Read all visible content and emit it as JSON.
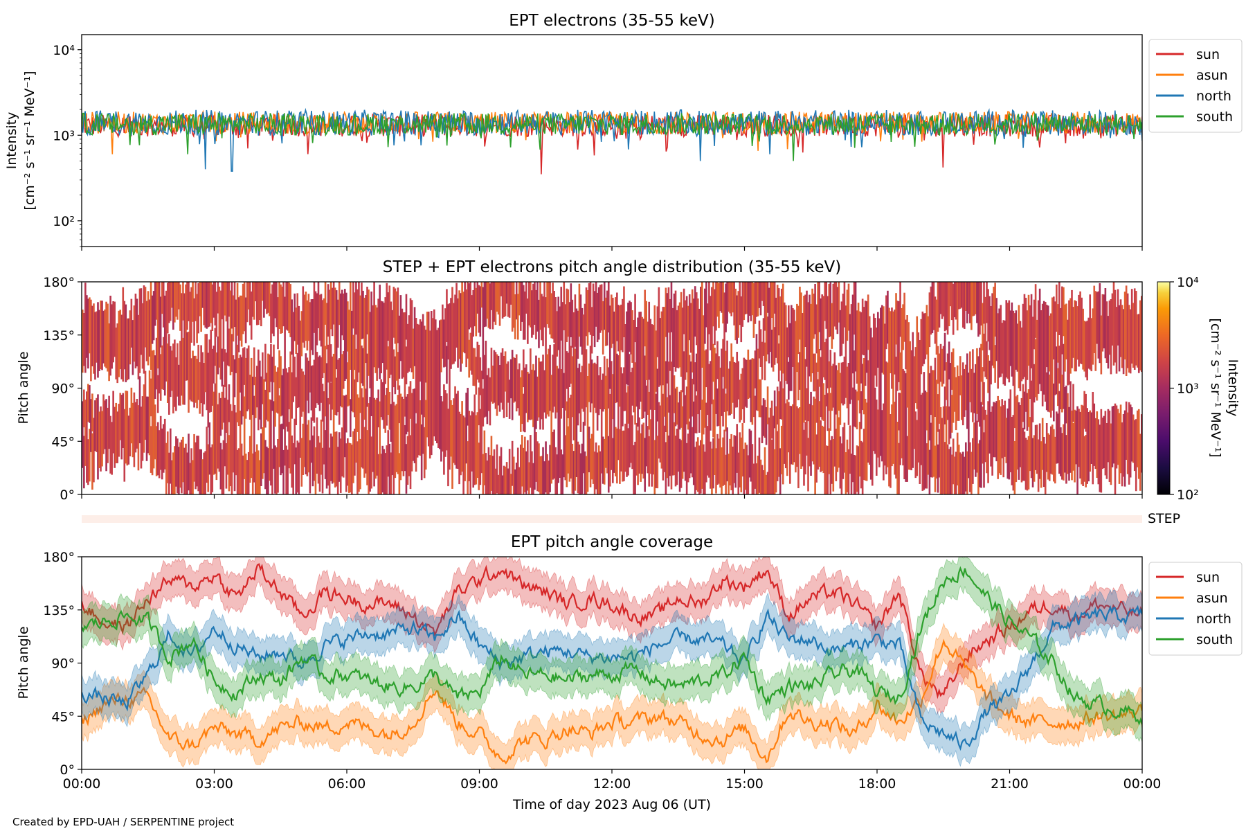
{
  "chart_data": [
    {
      "type": "line",
      "title": "EPT electrons (35-55 keV)",
      "ylabel_line1": "Intensity",
      "ylabel_line2": "[cm⁻² s⁻¹ sr⁻¹ MeV⁻¹]",
      "yscale": "log",
      "ylim": [
        50,
        15000
      ],
      "yticks": [
        100,
        1000,
        10000
      ],
      "ytick_labels": [
        "10²",
        "10³",
        "10⁴"
      ],
      "xlim": [
        0,
        24
      ],
      "legend_position": "outside-right-top",
      "series": [
        {
          "name": "sun",
          "color": "#d62728",
          "typical": 1300,
          "spread": 0.13,
          "dips": [
            [
              10.4,
              350
            ],
            [
              19.5,
              420
            ]
          ]
        },
        {
          "name": "asun",
          "color": "#ff7f0e",
          "typical": 1400,
          "spread": 0.13,
          "dips": [
            [
              0.7,
              600
            ]
          ]
        },
        {
          "name": "north",
          "color": "#1f77b4",
          "typical": 1400,
          "spread": 0.15,
          "dips": [
            [
              2.8,
              400
            ],
            [
              3.4,
              380
            ],
            [
              14.0,
              500
            ]
          ]
        },
        {
          "name": "south",
          "color": "#2ca02c",
          "typical": 1350,
          "spread": 0.13,
          "dips": [
            [
              2.4,
              600
            ],
            [
              16.1,
              500
            ]
          ]
        }
      ]
    },
    {
      "type": "heatmap",
      "title": "STEP + EPT electrons pitch angle distribution (35-55 keV)",
      "ylabel": "Pitch angle",
      "ylim": [
        0,
        180
      ],
      "yticks": [
        0,
        45,
        90,
        135,
        180
      ],
      "ytick_labels": [
        "0°",
        "45°",
        "90°",
        "135°",
        "180°"
      ],
      "xlim": [
        0,
        24
      ],
      "typical_intensity": 1300,
      "colorbar": {
        "label_line1": "Intensity",
        "label_line2": "[cm⁻² s⁻¹ sr⁻¹ MeV⁻¹]",
        "scale": "log",
        "range": [
          100,
          10000
        ],
        "ticks": [
          100,
          1000,
          10000
        ],
        "tick_labels": [
          "10²",
          "10³",
          "10⁴"
        ],
        "colormap": "inferno"
      },
      "step_label": "STEP"
    },
    {
      "type": "line",
      "title": "EPT pitch angle coverage",
      "ylabel": "Pitch angle",
      "xlabel": "Time of day 2023 Aug 06 (UT)",
      "ylim": [
        0,
        180
      ],
      "yticks": [
        0,
        45,
        90,
        135,
        180
      ],
      "ytick_labels": [
        "0°",
        "45°",
        "90°",
        "135°",
        "180°"
      ],
      "xlim": [
        0,
        24
      ],
      "xticks": [
        0,
        3,
        6,
        9,
        12,
        15,
        18,
        21,
        24
      ],
      "xtick_labels": [
        "00:00",
        "03:00",
        "06:00",
        "09:00",
        "12:00",
        "15:00",
        "18:00",
        "21:00",
        "00:00"
      ],
      "legend_position": "outside-right-top",
      "band_halfwidth": 15,
      "x": [
        0,
        0.5,
        1,
        1.5,
        2,
        2.5,
        3,
        3.5,
        4,
        4.5,
        5,
        5.5,
        6,
        6.5,
        7,
        7.5,
        8,
        8.5,
        9,
        9.5,
        10,
        10.5,
        11,
        11.5,
        12,
        12.5,
        13,
        13.5,
        14,
        14.5,
        15,
        15.5,
        16,
        16.5,
        17,
        17.5,
        18,
        18.5,
        19,
        19.5,
        20,
        20.5,
        21,
        21.5,
        22,
        22.5,
        23,
        23.5,
        24
      ],
      "series": [
        {
          "name": "sun",
          "color": "#d62728",
          "values": [
            140,
            125,
            120,
            145,
            160,
            155,
            165,
            145,
            170,
            150,
            130,
            150,
            145,
            140,
            140,
            130,
            115,
            150,
            160,
            170,
            155,
            150,
            140,
            145,
            140,
            130,
            130,
            145,
            140,
            160,
            155,
            170,
            130,
            145,
            150,
            140,
            120,
            150,
            80,
            60,
            95,
            110,
            120,
            135,
            140,
            130,
            140,
            135,
            130
          ]
        },
        {
          "name": "asun",
          "color": "#ff7f0e",
          "values": [
            40,
            55,
            60,
            60,
            25,
            20,
            35,
            30,
            25,
            35,
            40,
            35,
            40,
            35,
            30,
            40,
            70,
            40,
            30,
            10,
            25,
            25,
            35,
            30,
            40,
            40,
            45,
            40,
            30,
            25,
            35,
            10,
            50,
            40,
            40,
            30,
            55,
            40,
            60,
            110,
            85,
            60,
            45,
            40,
            40,
            40,
            45,
            45,
            50
          ]
        },
        {
          "name": "north",
          "color": "#1f77b4",
          "values": [
            65,
            60,
            55,
            80,
            115,
            95,
            120,
            105,
            95,
            100,
            90,
            105,
            110,
            115,
            115,
            120,
            110,
            130,
            105,
            90,
            95,
            100,
            100,
            95,
            95,
            95,
            105,
            110,
            110,
            105,
            90,
            130,
            110,
            110,
            100,
            105,
            110,
            105,
            40,
            30,
            20,
            50,
            60,
            90,
            120,
            125,
            130,
            130,
            130
          ]
        },
        {
          "name": "south",
          "color": "#2ca02c",
          "values": [
            120,
            125,
            130,
            125,
            95,
            110,
            75,
            65,
            80,
            75,
            95,
            80,
            80,
            75,
            70,
            70,
            80,
            60,
            65,
            95,
            80,
            80,
            75,
            80,
            80,
            85,
            75,
            70,
            75,
            80,
            95,
            60,
            70,
            70,
            80,
            85,
            65,
            60,
            120,
            160,
            170,
            145,
            125,
            110,
            90,
            60,
            55,
            50,
            45
          ]
        }
      ]
    }
  ],
  "credit": "Created by EPD-UAH / SERPENTINE project"
}
